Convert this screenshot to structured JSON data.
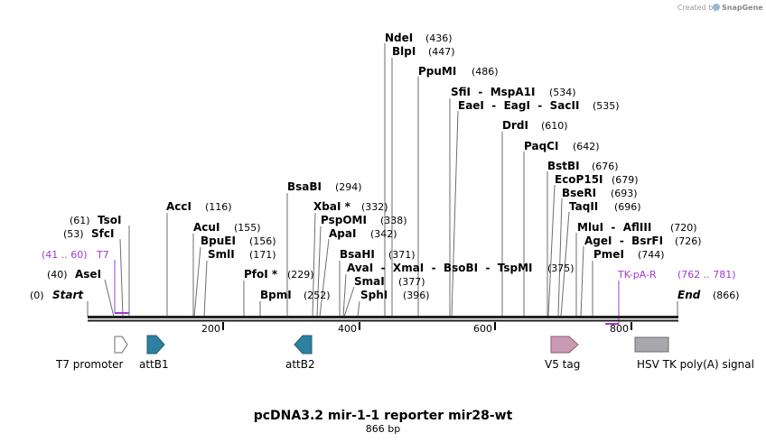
{
  "credit": {
    "prefix": "Created by",
    "brand": "SnapGene"
  },
  "title": "pcDNA3.2 mir-1-1 reporter mir28-wt",
  "subtitle": "866 bp",
  "colors": {
    "primer": "#a03bd0",
    "attB": "#2e7fa0",
    "v5": "#cc99b4",
    "hsv": "#a8a8ac"
  },
  "ends": {
    "start": {
      "label": "Start",
      "pos": "(0)"
    },
    "end": {
      "label": "End",
      "pos": "(866)"
    }
  },
  "sites": [
    {
      "name": "AseI",
      "pos": "(40)"
    },
    {
      "name": "SfcI",
      "pos": "(53)"
    },
    {
      "name": "TsoI",
      "pos": "(61)"
    },
    {
      "name": "AccI",
      "pos": "(116)"
    },
    {
      "name": "AcuI",
      "pos": "(155)"
    },
    {
      "name": "BpuEI",
      "pos": "(156)"
    },
    {
      "name": "SmlI",
      "pos": "(171)"
    },
    {
      "name": "PfoI *",
      "pos": "(229)"
    },
    {
      "name": "BpmI",
      "pos": "(252)"
    },
    {
      "name": "BsaBI",
      "pos": "(294)"
    },
    {
      "name": "XbaI *",
      "pos": "(332)"
    },
    {
      "name": "PspOMI",
      "pos": "(338)"
    },
    {
      "name": "ApaI",
      "pos": "(342)"
    },
    {
      "name": "BsaHI",
      "pos": "(371)"
    },
    {
      "name": "AvaI  -  XmaI  -  BsoBI  -  TspMI",
      "pos": "(375)"
    },
    {
      "name": "SmaI",
      "pos": "(377)"
    },
    {
      "name": "SphI",
      "pos": "(396)"
    },
    {
      "name": "NdeI",
      "pos": "(436)"
    },
    {
      "name": "BlpI",
      "pos": "(447)"
    },
    {
      "name": "PpuMI",
      "pos": "(486)"
    },
    {
      "name": "SfiI  -  MspA1I",
      "pos": "(534)"
    },
    {
      "name": "EaeI  -  EagI  -  SacII",
      "pos": "(535)"
    },
    {
      "name": "DrdI",
      "pos": "(610)"
    },
    {
      "name": "PaqCI",
      "pos": "(642)"
    },
    {
      "name": "BstBI",
      "pos": "(676)"
    },
    {
      "name": "EcoP15I",
      "pos": "(679)"
    },
    {
      "name": "BseRI",
      "pos": "(693)"
    },
    {
      "name": "TaqII",
      "pos": "(696)"
    },
    {
      "name": "MluI  -  AflIII",
      "pos": "(720)"
    },
    {
      "name": "AgeI  -  BsrFI",
      "pos": "(726)"
    },
    {
      "name": "PmeI",
      "pos": "(744)"
    }
  ],
  "primers": [
    {
      "name": "T7",
      "range": "(41 .. 60)"
    },
    {
      "name": "TK-pA-R",
      "range": "(762 .. 781)"
    }
  ],
  "ticks": [
    "200",
    "400",
    "600",
    "800"
  ],
  "features": [
    {
      "name": "T7 promoter"
    },
    {
      "name": "attB1"
    },
    {
      "name": "attB2"
    },
    {
      "name": "V5 tag"
    },
    {
      "name": "HSV TK poly(A) signal"
    }
  ]
}
